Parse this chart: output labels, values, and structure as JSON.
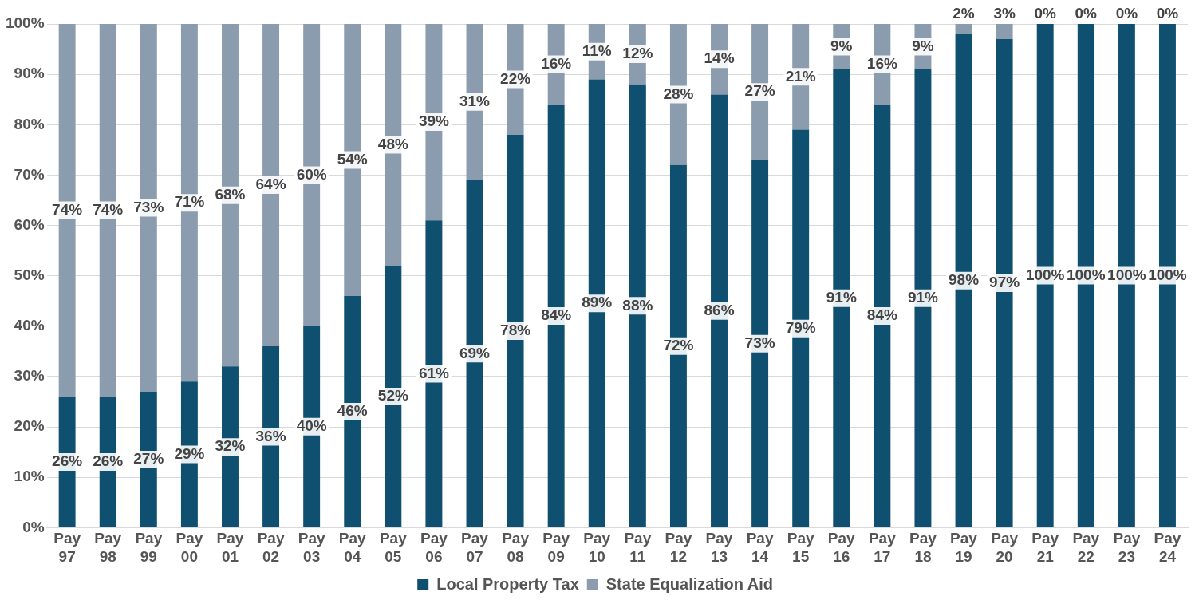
{
  "chart_data": {
    "type": "bar",
    "stacked": true,
    "grid": "y",
    "legend": "bottom",
    "categories": [
      "Pay 97",
      "Pay 98",
      "Pay 99",
      "Pay 00",
      "Pay 01",
      "Pay 02",
      "Pay 03",
      "Pay 04",
      "Pay 05",
      "Pay 06",
      "Pay 07",
      "Pay 08",
      "Pay 09",
      "Pay 10",
      "Pay 11",
      "Pay 12",
      "Pay 13",
      "Pay 14",
      "Pay 15",
      "Pay 16",
      "Pay 17",
      "Pay 18",
      "Pay 19",
      "Pay 20",
      "Pay 21",
      "Pay 22",
      "Pay 23",
      "Pay 24"
    ],
    "ylim": [
      0,
      100
    ],
    "yticks": [
      {
        "value": 0,
        "label": "0%"
      },
      {
        "value": 10,
        "label": "10%"
      },
      {
        "value": 20,
        "label": "20%"
      },
      {
        "value": 30,
        "label": "30%"
      },
      {
        "value": 40,
        "label": "40%"
      },
      {
        "value": 50,
        "label": "50%"
      },
      {
        "value": 60,
        "label": "60%"
      },
      {
        "value": 70,
        "label": "70%"
      },
      {
        "value": 80,
        "label": "80%"
      },
      {
        "value": 90,
        "label": "90%"
      },
      {
        "value": 100,
        "label": "100%"
      }
    ],
    "series": [
      {
        "name": "Local Property Tax",
        "color": "#0f4f6f",
        "values": [
          26,
          26,
          27,
          29,
          32,
          36,
          40,
          46,
          52,
          61,
          69,
          78,
          84,
          89,
          88,
          72,
          86,
          73,
          79,
          91,
          84,
          91,
          98,
          97,
          100,
          100,
          100,
          100
        ],
        "value_labels": [
          "26%",
          "26%",
          "27%",
          "29%",
          "32%",
          "36%",
          "40%",
          "46%",
          "52%",
          "61%",
          "69%",
          "78%",
          "84%",
          "89%",
          "88%",
          "72%",
          "86%",
          "73%",
          "79%",
          "91%",
          "84%",
          "91%",
          "98%",
          "97%",
          "100%",
          "100%",
          "100%",
          "100%"
        ]
      },
      {
        "name": "State Equalization Aid",
        "color": "#8a9cae",
        "values": [
          74,
          74,
          73,
          71,
          68,
          64,
          60,
          54,
          48,
          39,
          31,
          22,
          16,
          11,
          12,
          28,
          14,
          27,
          21,
          9,
          16,
          9,
          2,
          3,
          0,
          0,
          0,
          0
        ],
        "value_labels": [
          "74%",
          "74%",
          "73%",
          "71%",
          "68%",
          "64%",
          "60%",
          "54%",
          "48%",
          "39%",
          "31%",
          "22%",
          "16%",
          "11%",
          "12%",
          "28%",
          "14%",
          "27%",
          "21%",
          "9%",
          "16%",
          "9%",
          "2%",
          "3%",
          "0%",
          "0%",
          "0%",
          "0%"
        ]
      }
    ]
  }
}
